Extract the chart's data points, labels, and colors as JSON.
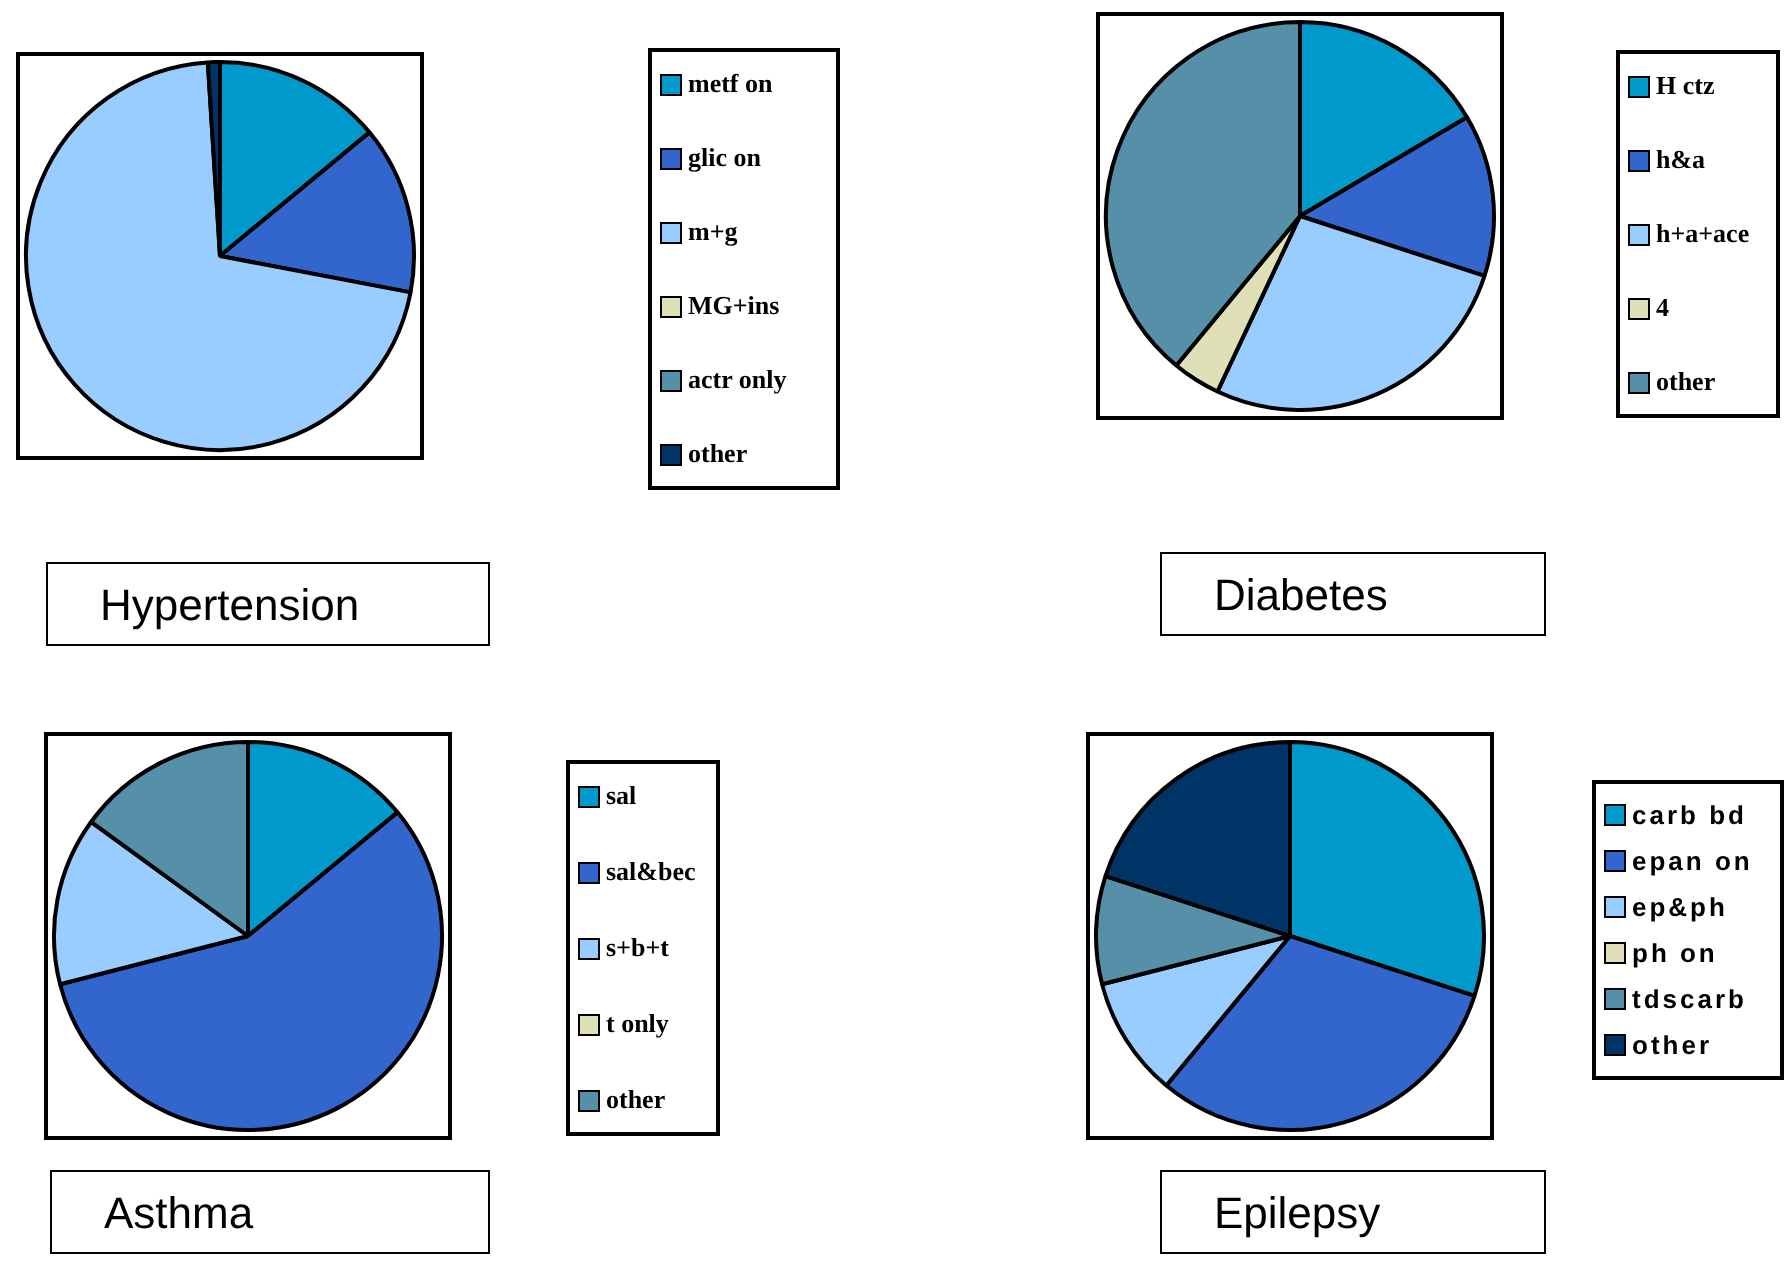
{
  "chart_data": [
    {
      "type": "pie",
      "title": "Hypertension",
      "categories": [
        "metf on",
        "glic on",
        "m+g",
        "MG+ins",
        "actr only",
        "other"
      ],
      "values": [
        14,
        14,
        71,
        0,
        0,
        1
      ],
      "colors": [
        "#0099cc",
        "#3366cc",
        "#99ccff",
        "#e0e0b8",
        "#5590a8",
        "#003366"
      ],
      "legend": "right"
    },
    {
      "type": "pie",
      "title": "Diabetes",
      "categories": [
        "H ctz",
        "h&a",
        "h+a+ace",
        "4",
        "other"
      ],
      "values": [
        16.5,
        13.5,
        27,
        4,
        39
      ],
      "colors": [
        "#0099cc",
        "#3366cc",
        "#99ccff",
        "#e0e0b8",
        "#5590a8"
      ],
      "legend": "right"
    },
    {
      "type": "pie",
      "title": "Asthma",
      "categories": [
        "sal",
        "sal&bec",
        "s+b+t",
        "t only",
        "other"
      ],
      "values": [
        14,
        57,
        14,
        0,
        15
      ],
      "colors": [
        "#0099cc",
        "#3366cc",
        "#99ccff",
        "#e0e0b8",
        "#5590a8"
      ],
      "legend": "right"
    },
    {
      "type": "pie",
      "title": "Epilepsy",
      "categories": [
        "carb bd",
        "epan on",
        "ep&ph",
        "ph on",
        "tdscarb",
        "other"
      ],
      "values": [
        30,
        31,
        10,
        0,
        9,
        20
      ],
      "colors": [
        "#0099cc",
        "#3366cc",
        "#99ccff",
        "#e0e0b8",
        "#5590a8",
        "#003366"
      ],
      "legend": "right"
    }
  ]
}
